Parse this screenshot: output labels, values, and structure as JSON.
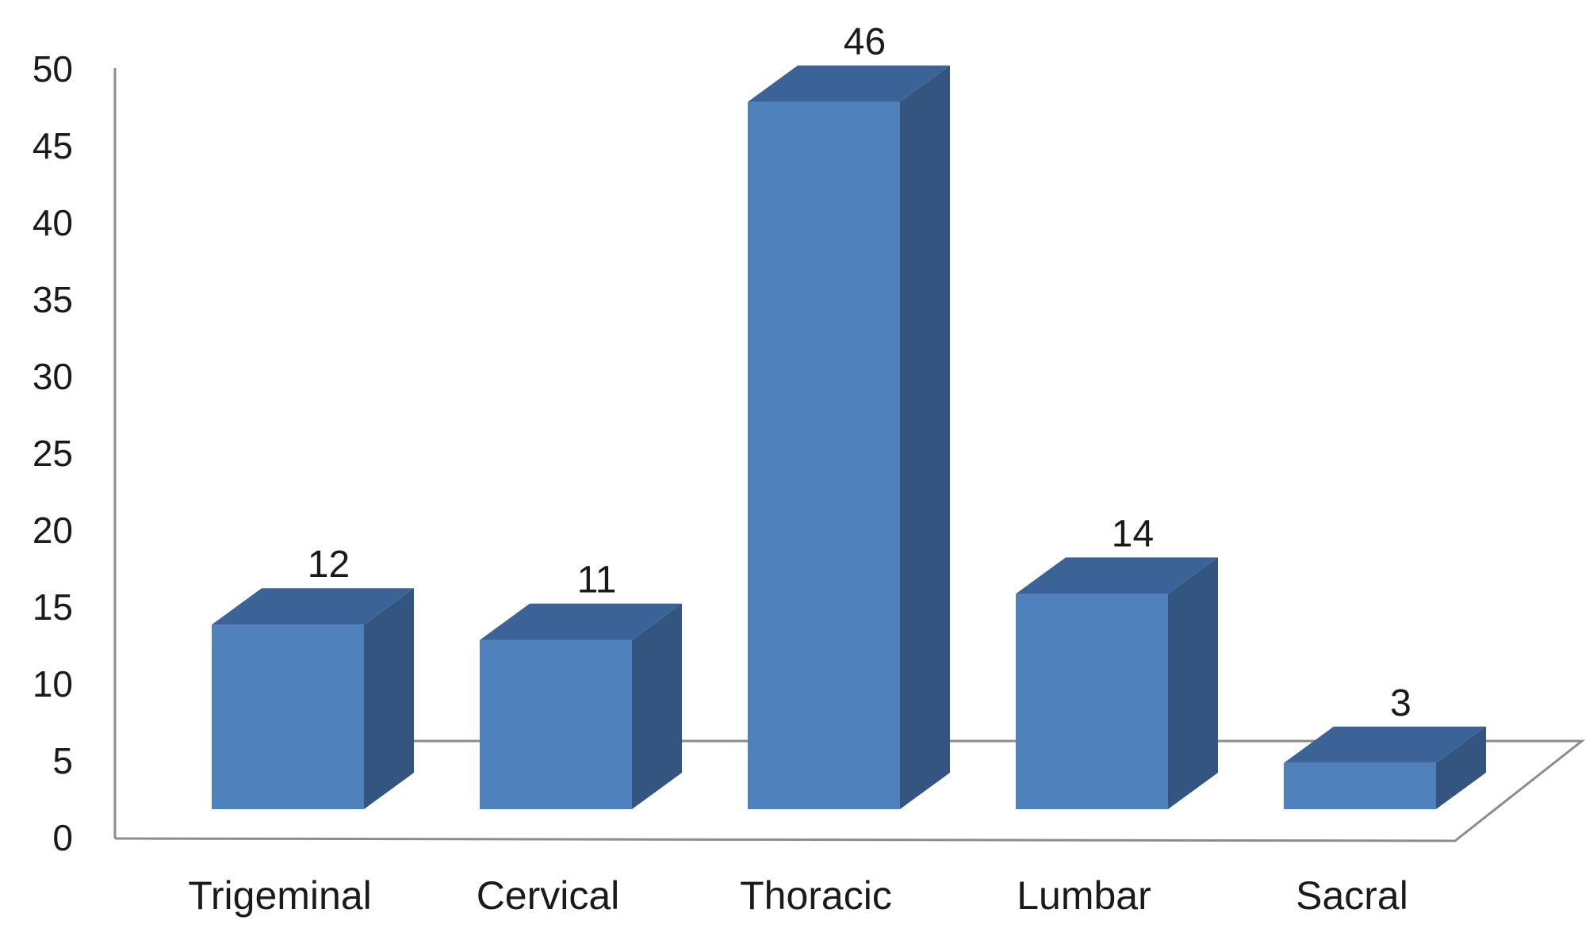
{
  "chart_data": {
    "type": "bar",
    "style": "3d-column",
    "categories": [
      "Trigeminal",
      "Cervical",
      "Thoracic",
      "Lumbar",
      "Sacral"
    ],
    "values": [
      12,
      11,
      46,
      14,
      3
    ],
    "data_labels": [
      "12",
      "11",
      "46",
      "14",
      "3"
    ],
    "ylim": [
      0,
      50
    ],
    "yticks": [
      0,
      5,
      10,
      15,
      20,
      25,
      30,
      35,
      40,
      45,
      50
    ],
    "ytick_labels": [
      "0",
      "5",
      "10",
      "15",
      "20",
      "25",
      "30",
      "35",
      "40",
      "45",
      "50"
    ],
    "grid": false,
    "legend": "none",
    "colors": {
      "front": "#4f81bd",
      "side": "#34557f",
      "top": "#3b6397",
      "axis": "#8c8c8c"
    }
  }
}
